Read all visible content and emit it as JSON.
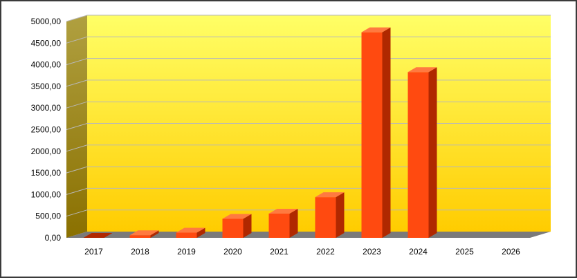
{
  "chart_data": {
    "type": "bar",
    "categories": [
      "2017",
      "2018",
      "2019",
      "2020",
      "2021",
      "2022",
      "2023",
      "2024",
      "2025",
      "2026"
    ],
    "values": [
      0,
      60,
      120,
      440,
      560,
      940,
      4750,
      3830,
      0,
      0
    ],
    "y_tick_labels": [
      "0,00",
      "500,00",
      "1000,00",
      "1500,00",
      "2000,00",
      "2500,00",
      "3000,00",
      "3500,00",
      "4000,00",
      "4500,00",
      "5000,00"
    ],
    "ylim": [
      0,
      5000
    ],
    "grid": true,
    "three_d": true,
    "colors": {
      "bar_front": "#ff4a10",
      "bar_side": "#b02800",
      "bar_top": "#ff7a40",
      "background_top": "#ffff66",
      "background_bottom": "#ffcc00",
      "side_wall_top": "#b0a040",
      "side_wall_bottom": "#8a7000",
      "floor": "#7a7a7a",
      "gridline": "#b8b8b8"
    }
  }
}
